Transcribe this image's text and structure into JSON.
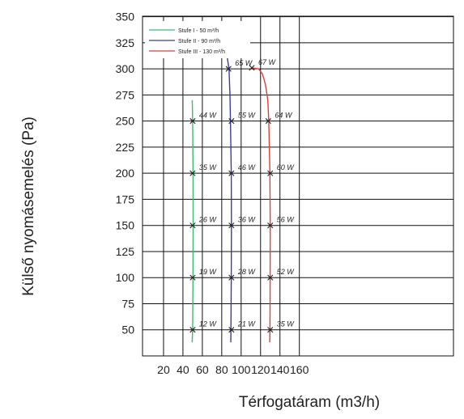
{
  "chart_data": {
    "type": "line",
    "title": "",
    "xlabel": "Térfogatáram (m3/h)",
    "ylabel": "Külső nyomásemelés (Pa)",
    "xlim": [
      0,
      160
    ],
    "ylim": [
      25,
      350
    ],
    "xticks": [
      20,
      40,
      60,
      80,
      100,
      120,
      140,
      160
    ],
    "yticks": [
      50,
      75,
      100,
      125,
      150,
      175,
      200,
      225,
      250,
      275,
      300,
      325,
      350
    ],
    "grid": true,
    "legend_position": "top-left",
    "series": [
      {
        "name": "Stufe I - 50 m³/h",
        "color": "#3dbb72",
        "curve": [
          [
            49.5,
            38
          ],
          [
            50,
            50
          ],
          [
            50.3,
            100
          ],
          [
            50.5,
            150
          ],
          [
            50.4,
            200
          ],
          [
            50,
            250
          ],
          [
            49.6,
            270
          ]
        ],
        "points": [
          {
            "x": 50,
            "y": 50,
            "label": "12 W"
          },
          {
            "x": 50,
            "y": 100,
            "label": "19 W"
          },
          {
            "x": 50,
            "y": 150,
            "label": "26 W"
          },
          {
            "x": 50,
            "y": 200,
            "label": "35 W"
          },
          {
            "x": 50,
            "y": 250,
            "label": "44 W"
          }
        ]
      },
      {
        "name": "Stufe II - 90 m³/h",
        "color": "#3c3c9e",
        "curve": [
          [
            89.3,
            38
          ],
          [
            89.5,
            50
          ],
          [
            89.8,
            100
          ],
          [
            90,
            150
          ],
          [
            89.8,
            200
          ],
          [
            89,
            250
          ],
          [
            88.5,
            275
          ],
          [
            87.5,
            300
          ],
          [
            85,
            315
          ],
          [
            82.5,
            320
          ]
        ],
        "points": [
          {
            "x": 90,
            "y": 50,
            "label": "21 W"
          },
          {
            "x": 90,
            "y": 100,
            "label": "28 W"
          },
          {
            "x": 90,
            "y": 150,
            "label": "36 W"
          },
          {
            "x": 90,
            "y": 200,
            "label": "46 W"
          },
          {
            "x": 90,
            "y": 250,
            "label": "55 W"
          },
          {
            "x": 87,
            "y": 300,
            "label": "65 W"
          }
        ]
      },
      {
        "name": "Stufe III - 130 m³/h",
        "color": "#d9413a",
        "curve": [
          [
            129.5,
            38
          ],
          [
            129.7,
            50
          ],
          [
            129.9,
            100
          ],
          [
            130,
            150
          ],
          [
            129.6,
            200
          ],
          [
            128.5,
            250
          ],
          [
            127.5,
            270
          ],
          [
            125,
            285
          ],
          [
            122,
            295
          ],
          [
            118,
            300
          ],
          [
            111,
            301
          ]
        ],
        "points": [
          {
            "x": 130,
            "y": 50,
            "label": "35 W"
          },
          {
            "x": 130,
            "y": 100,
            "label": "52 W"
          },
          {
            "x": 130,
            "y": 150,
            "label": "56 W"
          },
          {
            "x": 130,
            "y": 200,
            "label": "60 W"
          },
          {
            "x": 128,
            "y": 250,
            "label": "64 W"
          },
          {
            "x": 111,
            "y": 301,
            "label": "67 W"
          }
        ]
      }
    ]
  }
}
